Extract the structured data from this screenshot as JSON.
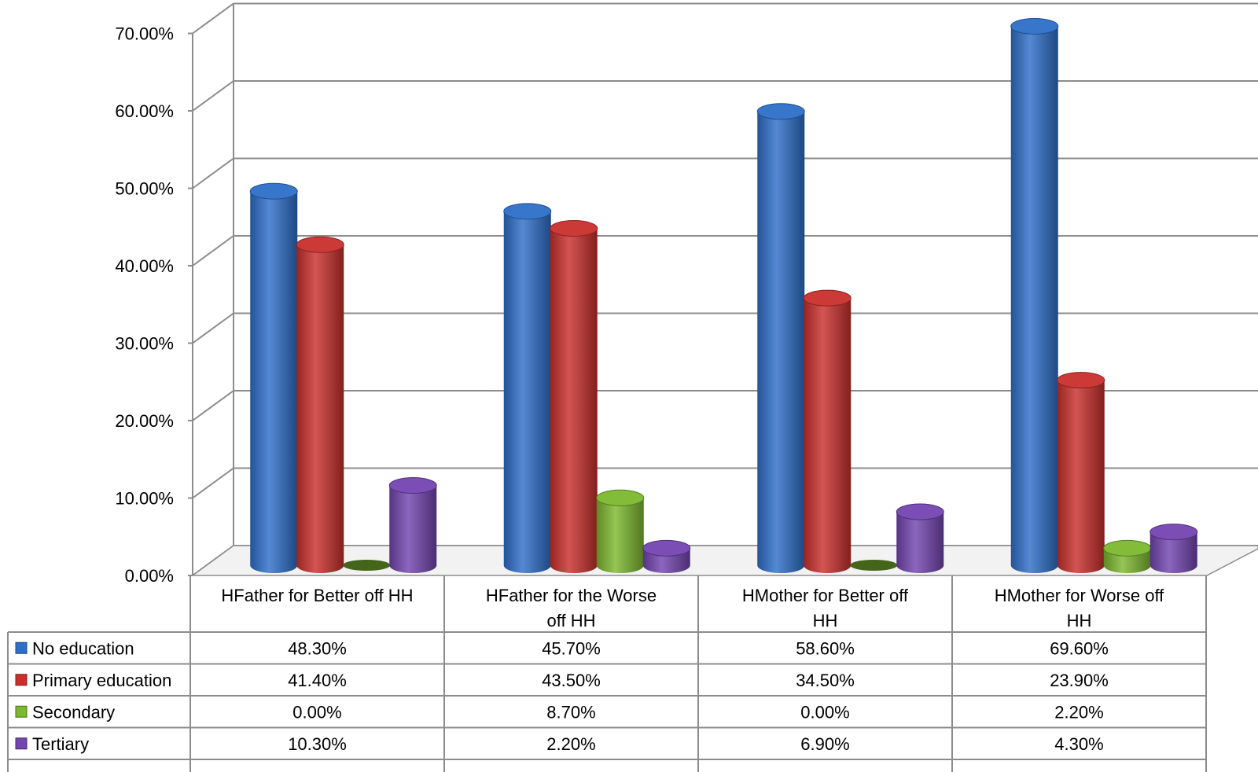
{
  "chart_data": {
    "type": "bar",
    "style": "3d-cylinder",
    "categories": [
      [
        "HFather for Better off HH"
      ],
      [
        "HFather for the Worse",
        "off HH"
      ],
      [
        "HMother for Better off",
        "HH"
      ],
      [
        "HMother for Worse off",
        "HH"
      ]
    ],
    "series": [
      {
        "name": "No education",
        "color": "#2E6FC9",
        "values": [
          48.3,
          45.7,
          58.6,
          69.6
        ],
        "labels": [
          "48.30%",
          "45.70%",
          "58.60%",
          "69.60%"
        ]
      },
      {
        "name": "Primary education",
        "color": "#C9302C",
        "values": [
          41.4,
          43.5,
          34.5,
          23.9
        ],
        "labels": [
          "41.40%",
          "43.50%",
          "34.50%",
          "23.90%"
        ]
      },
      {
        "name": "Secondary",
        "color": "#7CB82F",
        "values": [
          0.0,
          8.7,
          0.0,
          2.2
        ],
        "labels": [
          "0.00%",
          "8.70%",
          "0.00%",
          "2.20%"
        ]
      },
      {
        "name": "Tertiary",
        "color": "#7345B0",
        "values": [
          10.3,
          2.2,
          6.9,
          4.3
        ],
        "labels": [
          "10.30%",
          "2.20%",
          "6.90%",
          "4.30%"
        ]
      }
    ],
    "y_ticks": [
      "0.00%",
      "10.00%",
      "20.00%",
      "30.00%",
      "40.00%",
      "50.00%",
      "60.00%",
      "70.00%"
    ],
    "ylim": [
      0,
      70
    ],
    "grid": true,
    "legend": "data-table"
  }
}
